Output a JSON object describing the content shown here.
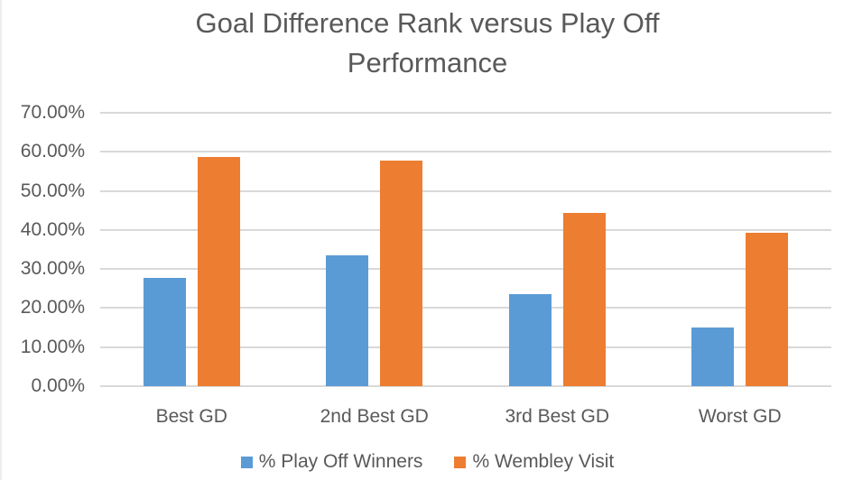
{
  "chart_data": {
    "type": "bar",
    "title": "Goal Difference Rank versus Play Off Performance",
    "categories": [
      "Best GD",
      "2nd Best GD",
      "3rd Best GD",
      "Worst GD"
    ],
    "series": [
      {
        "name": "% Play Off Winners",
        "color": "#5B9BD5",
        "values": [
          27.8,
          33.5,
          23.5,
          15.0
        ]
      },
      {
        "name": "% Wembley Visit",
        "color": "#ED7D31",
        "values": [
          58.6,
          57.7,
          44.4,
          39.3
        ]
      }
    ],
    "ylim": [
      0,
      70
    ],
    "yticks": [
      {
        "value": 0,
        "label": "0.00%"
      },
      {
        "value": 10,
        "label": "10.00%"
      },
      {
        "value": 20,
        "label": "20.00%"
      },
      {
        "value": 30,
        "label": "30.00%"
      },
      {
        "value": 40,
        "label": "40.00%"
      },
      {
        "value": 50,
        "label": "50.00%"
      },
      {
        "value": 60,
        "label": "60.00%"
      },
      {
        "value": 70,
        "label": "70.00%"
      }
    ],
    "grid": true,
    "legend_position": "bottom",
    "colors": {
      "text": "#595959",
      "gridline": "#D9D9D9",
      "background": "#FFFFFF"
    }
  }
}
